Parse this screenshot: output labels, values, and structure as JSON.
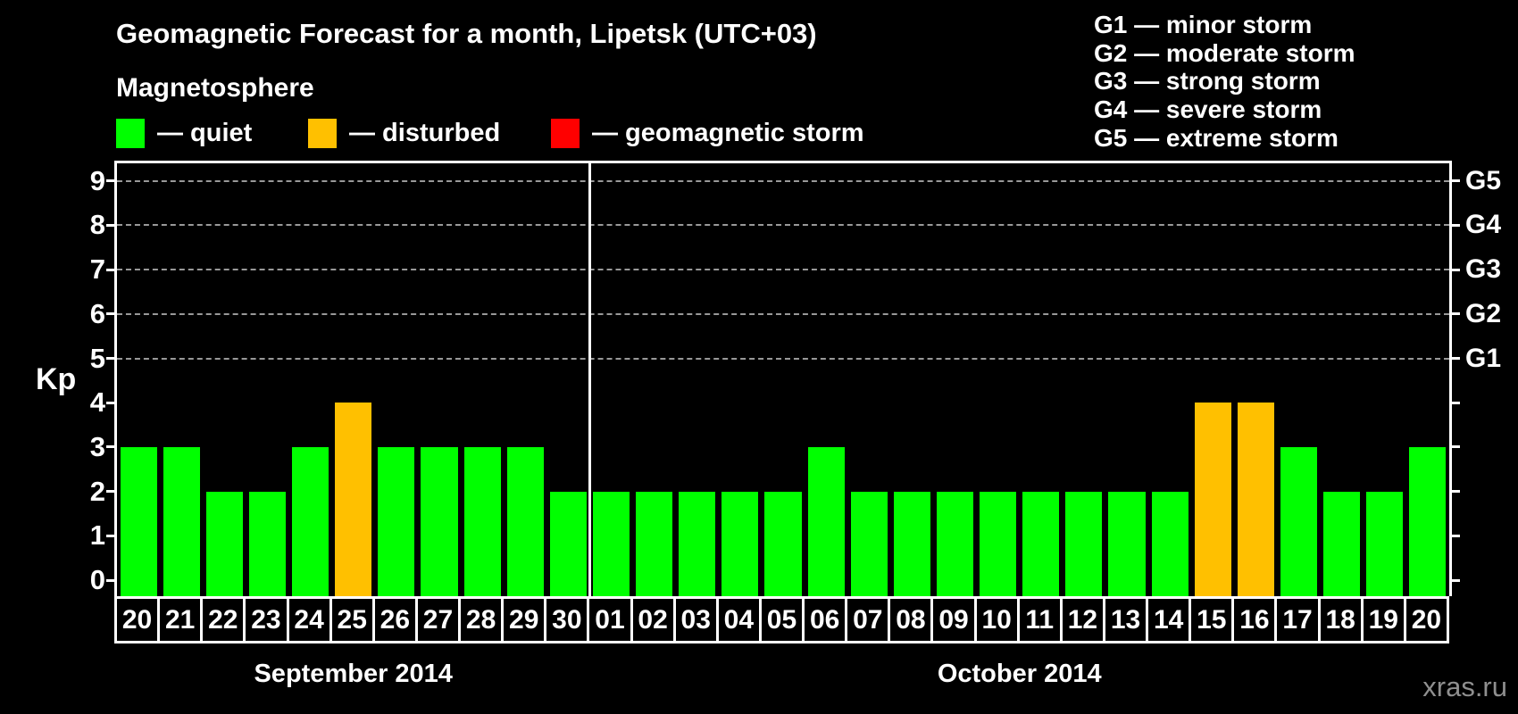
{
  "title": "Geomagnetic Forecast for a month, Lipetsk (UTC+03)",
  "subtitle": "Magnetosphere",
  "legend": {
    "items": [
      {
        "label": "— quiet",
        "status": "quiet",
        "color": "#00ff00"
      },
      {
        "label": "— disturbed",
        "status": "disturbed",
        "color": "#ffc000"
      },
      {
        "label": "— geomagnetic storm",
        "status": "storm",
        "color": "#ff0000"
      }
    ]
  },
  "storm_scale_legend": [
    "G1 — minor storm",
    "G2 — moderate storm",
    "G3 — strong storm",
    "G4 — severe storm",
    "G5 — extreme storm"
  ],
  "watermark": "xras.ru",
  "chart_data": {
    "type": "bar",
    "title": "Geomagnetic Forecast for a month, Lipetsk (UTC+03)",
    "ylabel": "Kp",
    "xlabel": "",
    "ylim": [
      -0.36,
      9.4
    ],
    "y_ticks": [
      0,
      1,
      2,
      3,
      4,
      5,
      6,
      7,
      8,
      9
    ],
    "gridlines_at_kp": [
      5,
      6,
      7,
      8,
      9
    ],
    "grid_style": "dashed gray, only at Kp 5–9",
    "right_axis_labels": [
      {
        "kp": 5,
        "label": "G1"
      },
      {
        "kp": 6,
        "label": "G2"
      },
      {
        "kp": 7,
        "label": "G3"
      },
      {
        "kp": 8,
        "label": "G4"
      },
      {
        "kp": 9,
        "label": "G5"
      }
    ],
    "months": [
      {
        "label": "September 2014",
        "days": 11
      },
      {
        "label": "October 2014",
        "days": 20
      }
    ],
    "categories": [
      "20",
      "21",
      "22",
      "23",
      "24",
      "25",
      "26",
      "27",
      "28",
      "29",
      "30",
      "01",
      "02",
      "03",
      "04",
      "05",
      "06",
      "07",
      "08",
      "09",
      "10",
      "11",
      "12",
      "13",
      "14",
      "15",
      "16",
      "17",
      "18",
      "19",
      "20"
    ],
    "values": [
      3,
      3,
      2,
      2,
      3,
      4,
      3,
      3,
      3,
      3,
      2,
      2,
      2,
      2,
      2,
      2,
      3,
      2,
      2,
      2,
      2,
      2,
      2,
      2,
      2,
      4,
      4,
      3,
      2,
      2,
      3
    ],
    "statuses": [
      "quiet",
      "quiet",
      "quiet",
      "quiet",
      "quiet",
      "disturbed",
      "quiet",
      "quiet",
      "quiet",
      "quiet",
      "quiet",
      "quiet",
      "quiet",
      "quiet",
      "quiet",
      "quiet",
      "quiet",
      "quiet",
      "quiet",
      "quiet",
      "quiet",
      "quiet",
      "quiet",
      "quiet",
      "quiet",
      "disturbed",
      "disturbed",
      "quiet",
      "quiet",
      "quiet",
      "quiet"
    ],
    "colors": {
      "quiet": "#00ff00",
      "disturbed": "#ffc000",
      "storm": "#ff0000"
    },
    "legend_position": "top-left",
    "background": "#000000"
  }
}
